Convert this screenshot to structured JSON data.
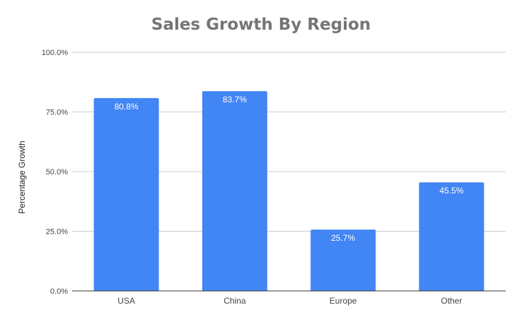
{
  "chart_data": {
    "type": "bar",
    "title": "Sales Growth By Region",
    "xlabel": "",
    "ylabel": "Percentage Growth",
    "categories": [
      "USA",
      "China",
      "Europe",
      "Other"
    ],
    "values": [
      80.8,
      83.7,
      25.7,
      45.5
    ],
    "value_labels": [
      "80.8%",
      "83.7%",
      "25.7%",
      "45.5%"
    ],
    "ylim": [
      0,
      100
    ],
    "yticks": [
      0,
      25,
      50,
      75,
      100
    ],
    "ytick_labels": [
      "0.0%",
      "25.0%",
      "50.0%",
      "75.0%",
      "100.0%"
    ],
    "grid": true,
    "legend": "none",
    "colors": {
      "bar": "#4285f4",
      "label": "#ffffff",
      "grid": "#cccccc",
      "axis": "#333333",
      "tick_text": "#444444"
    }
  }
}
